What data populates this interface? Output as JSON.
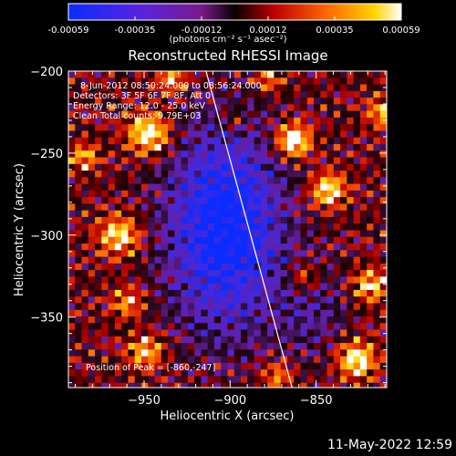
{
  "title": "Reconstructed RHESSI Image",
  "colorbar": {
    "ticks": [
      "-0.00059",
      "-0.00035",
      "-0.00012",
      "0.00012",
      "0.00035",
      "0.00059"
    ],
    "unit_label": "(photons cm⁻² s⁻¹ asec⁻²)",
    "range": [
      -0.00059,
      0.00059
    ]
  },
  "annotations": {
    "time": "8-Jun-2012 08:50:24.000 to 08:56:24.000",
    "detectors": "Detectors: 3F 5F 6F 7F 8F, Att 0",
    "energy": "Energy Range: 12.0 - 25.0 keV",
    "clean_total": "Clean     Total counts: 9.79E+03",
    "peak": "Position of Peak = [-860,-247]"
  },
  "footer_date": "11-May-2022 12:59",
  "chart_data": {
    "type": "heatmap",
    "title": "Reconstructed RHESSI Image",
    "xlabel": "Heliocentric X (arcsec)",
    "ylabel": "Heliocentric Y (arcsec)",
    "xlim": [
      -994,
      -809
    ],
    "ylim": [
      -393,
      -200
    ],
    "x_ticks": [
      -950,
      -900,
      -850
    ],
    "y_ticks": [
      -200,
      -250,
      -300,
      -350
    ],
    "peak": [
      -860,
      -247
    ],
    "colormap": "rainbow-heat (blue-purple-black-red-orange-yellow-white)",
    "limb_line": [
      [
        -914,
        -200
      ],
      [
        -864,
        -393
      ]
    ]
  }
}
